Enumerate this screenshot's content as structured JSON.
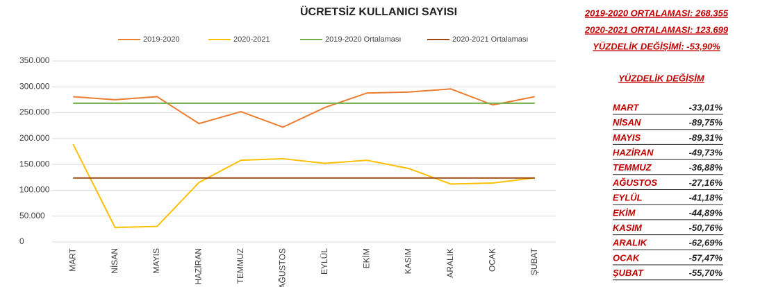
{
  "chart_data": {
    "type": "line",
    "title": "ÜCRETSİZ KULLANICI SAYISI",
    "categories": [
      "MART",
      "NİSAN",
      "MAYIS",
      "HAZİRAN",
      "TEMMUZ",
      "AĞUSTOS",
      "EYLÜL",
      "EKİM",
      "KASIM",
      "ARALIK",
      "OCAK",
      "ŞUBAT"
    ],
    "series": [
      {
        "name": "2019-2020",
        "color": "#ed7d31",
        "values": [
          281000,
          275000,
          281000,
          229000,
          252000,
          222000,
          260000,
          288000,
          290000,
          296000,
          265000,
          281000
        ]
      },
      {
        "name": "2020-2021",
        "color": "#ffc000",
        "values": [
          189000,
          28000,
          30000,
          115000,
          158000,
          161000,
          152000,
          158000,
          142000,
          112000,
          114000,
          124000
        ]
      },
      {
        "name": "2019-2020 Ortalaması",
        "color": "#70ad47",
        "values": [
          268355,
          268355,
          268355,
          268355,
          268355,
          268355,
          268355,
          268355,
          268355,
          268355,
          268355,
          268355
        ]
      },
      {
        "name": "2020-2021 Ortalaması",
        "color": "#9e480e",
        "values": [
          123699,
          123699,
          123699,
          123699,
          123699,
          123699,
          123699,
          123699,
          123699,
          123699,
          123699,
          123699
        ]
      }
    ],
    "ylim": [
      0,
      350000
    ],
    "yticks": [
      0,
      {
        "value": 50000,
        "label": "50.000"
      },
      {
        "value": 100000,
        "label": "100.000"
      },
      {
        "value": 150000,
        "label": "150.000"
      },
      {
        "value": 200000,
        "label": "200.000"
      },
      {
        "value": 250000,
        "label": "250.000"
      },
      {
        "value": 300000,
        "label": "300.000"
      },
      {
        "value": 350000,
        "label": "350.000"
      }
    ],
    "grid": true,
    "legend": "top"
  },
  "side_panel": {
    "summary": [
      "2019-2020 ORTALAMASI: 268.355",
      "2020-2021 ORTALAMASI: 123.699",
      "YÜZDELİK DEĞİŞİMİ: -53,90%"
    ],
    "table_title": "YÜZDELİK DEĞİŞİM",
    "rows": [
      [
        "MART",
        "-33,01%"
      ],
      [
        "NİSAN",
        "-89,75%"
      ],
      [
        "MAYIS",
        "-89,31%"
      ],
      [
        "HAZİRAN",
        "-49,73%"
      ],
      [
        "TEMMUZ",
        "-36,88%"
      ],
      [
        "AĞUSTOS",
        "-27,16%"
      ],
      [
        "EYLÜL",
        "-41,18%"
      ],
      [
        "EKİM",
        "-44,89%"
      ],
      [
        "KASIM",
        "-50,76%"
      ],
      [
        "ARALIK",
        "-62,69%"
      ],
      [
        "OCAK",
        "-57,47%"
      ],
      [
        "ŞUBAT",
        "-55,70%"
      ]
    ]
  }
}
